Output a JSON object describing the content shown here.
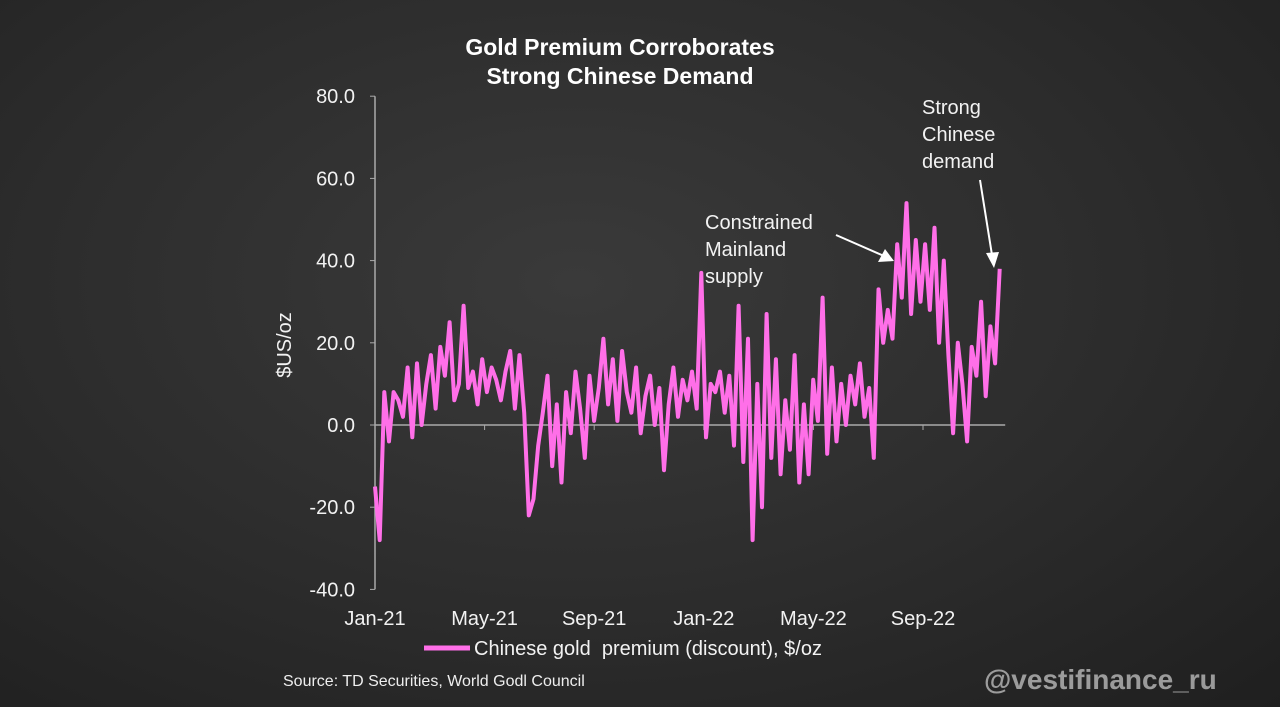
{
  "chart_data": {
    "type": "line",
    "title": [
      "Gold Premium Corroborates",
      "Strong Chinese Demand"
    ],
    "ylabel": "$US/oz",
    "xlabel": "",
    "ylim": [
      -40,
      80
    ],
    "yticks": [
      "80.0",
      "60.0",
      "40.0",
      "20.0",
      "0.0",
      "-20.0",
      "-40.0"
    ],
    "ytick_values": [
      80,
      60,
      40,
      20,
      0,
      -20,
      -40
    ],
    "xticks": [
      "Jan-21",
      "May-21",
      "Sep-21",
      "Jan-22",
      "May-22",
      "Sep-22"
    ],
    "xtick_months": [
      0,
      4,
      8,
      12,
      16,
      20
    ],
    "x_range_months": [
      0,
      23
    ],
    "series": [
      {
        "name": "Chinese gold  premium (discount), $/oz",
        "color": "#ff6fe8",
        "values": [
          -15,
          -28,
          8,
          -4,
          8,
          6,
          2,
          14,
          -3,
          15,
          0,
          10,
          17,
          4,
          19,
          12,
          25,
          6,
          10,
          29,
          9,
          13,
          5,
          16,
          8,
          14,
          11,
          6,
          13,
          18,
          4,
          17,
          3,
          -22,
          -18,
          -5,
          3,
          12,
          -10,
          5,
          -14,
          8,
          -2,
          13,
          4,
          -8,
          12,
          1,
          9,
          21,
          5,
          16,
          1,
          18,
          8,
          3,
          14,
          -2,
          7,
          12,
          0,
          9,
          -11,
          5,
          14,
          2,
          11,
          6,
          13,
          4,
          37,
          -3,
          10,
          8,
          13,
          3,
          12,
          -5,
          29,
          -9,
          21,
          -28,
          10,
          -20,
          27,
          -8,
          16,
          -12,
          6,
          -6,
          17,
          -14,
          5,
          -12,
          11,
          1,
          31,
          -7,
          14,
          -4,
          10,
          0,
          12,
          5,
          15,
          2,
          9,
          -8,
          33,
          20,
          28,
          21,
          44,
          31,
          54,
          27,
          45,
          30,
          44,
          28,
          48,
          20,
          40,
          17,
          -2,
          20,
          10,
          -4,
          19,
          12,
          30,
          7,
          24,
          15,
          38
        ]
      }
    ],
    "annotations": [
      {
        "text": [
          "Constrained",
          "Mainland",
          "supply"
        ]
      },
      {
        "text": [
          "Strong",
          "Chinese",
          "demand"
        ]
      }
    ],
    "legend_position": "bottom",
    "grid": false
  },
  "source": "Source: TD Securities, World Godl Council",
  "watermark": "@vestifinance_ru"
}
